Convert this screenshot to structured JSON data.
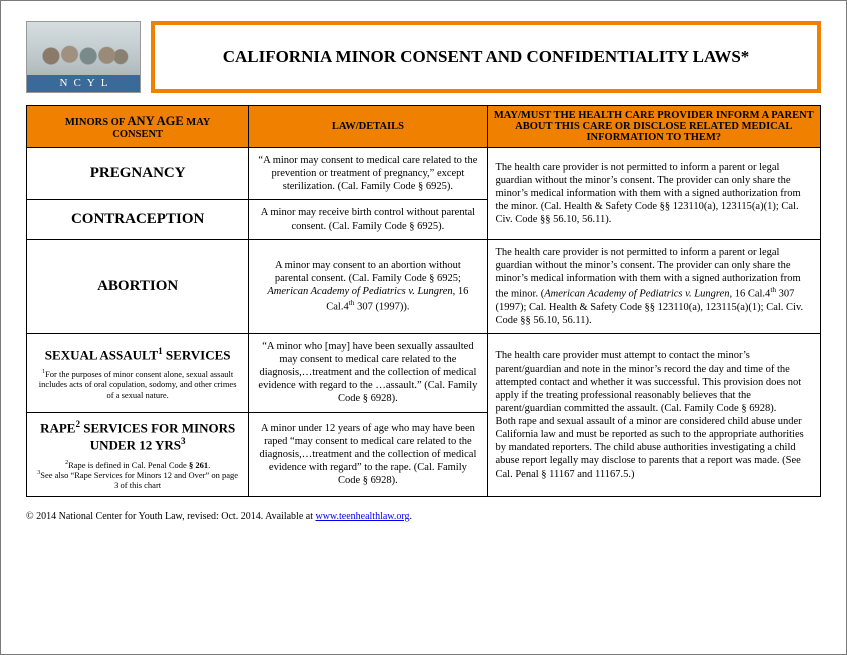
{
  "colors": {
    "accent": "#f08000",
    "logo_band": "#3a6a9a",
    "border": "#000000",
    "background": "#ffffff",
    "link": "#0000ee"
  },
  "logo": {
    "letters": "NCYL"
  },
  "title": "CALIFORNIA MINOR CONSENT AND CONFIDENTIALITY LAWS*",
  "headers": {
    "col1_line1": "MINORS OF",
    "col1_big": "ANY AGE",
    "col1_line1b": "MAY",
    "col1_line2": "CONSENT",
    "col2": "LAW/DETAILS",
    "col3": "MAY/MUST THE HEALTH CARE PROVIDER INFORM A PARENT ABOUT THIS CARE OR DISCLOSE RELATED MEDICAL INFORMATION TO THEM?"
  },
  "rows": {
    "pregnancy": {
      "title": "PREGNANCY",
      "law": "“A minor may consent to medical care related to the prevention or treatment of pregnancy,” except sterilization. (Cal. Family Code § 6925)."
    },
    "contraception": {
      "title": "CONTRACEPTION",
      "law": "A minor may receive birth control without parental consent. (Cal. Family Code § 6925)."
    },
    "preg_contra_disclosure": "The health care provider is not permitted to inform a parent or legal guardian without the minor’s consent.  The provider can only share the minor’s medical information with them with a signed authorization from the minor. (Cal. Health & Safety Code §§ 123110(a), 123115(a)(1); Cal. Civ. Code §§ 56.10, 56.11).",
    "abortion": {
      "title": "ABORTION",
      "law_pre": "A minor may consent to an abortion without parental consent. (Cal. Family Code § 6925; ",
      "law_case": "American Academy of Pediatrics v. Lungren,",
      "law_post": " 16 Cal.4",
      "law_th": "th",
      "law_end": " 307 (1997)).",
      "disc_pre": "The health care provider is not permitted to inform a parent or legal guardian without the minor’s consent.  The provider can only share the minor’s medical information with them with a signed authorization from the minor. (",
      "disc_case": "American Academy of Pediatrics v. Lungren,",
      "disc_post": " 16 Cal.4",
      "disc_th": "th",
      "disc_end": " 307 (1997); Cal. Health & Safety Code §§ 123110(a), 123115(a)(1); Cal. Civ. Code §§ 56.10, 56.11)."
    },
    "sexual_assault": {
      "title_pre": "SEXUAL ASSAULT",
      "title_sup": "1",
      "title_post": " SERVICES",
      "note_sup": "1",
      "note": "For the purposes of minor consent alone, sexual assault includes acts of oral copulation, sodomy, and other crimes of a sexual nature.",
      "law": "“A minor who [may] have been sexually assaulted may consent to medical care related to the diagnosis,…treatment and the collection of medical evidence with regard to the …assault.” (Cal. Family Code § 6928)."
    },
    "rape": {
      "title_pre": "RAPE",
      "title_sup1": "2",
      "title_mid": " SERVICES FOR MINORS UNDER 12 YRS",
      "title_sup2": "3",
      "note2_sup": "2",
      "note2_pre": "Rape is defined in Cal. Penal Code ",
      "note2_bold": "§ 261",
      "note2_post": ".",
      "note3_sup": "3",
      "note3": "See also “Rape Services for Minors 12 and Over” on page 3 of this chart",
      "law": "A minor under 12 years of age who may have been raped “may consent to medical care related to the diagnosis,…treatment and the collection of medical evidence with regard” to the rape. (Cal. Family Code § 6928)."
    },
    "assault_rape_disclosure_p1": "The health care provider must attempt to contact the minor’s parent/guardian and note in the minor’s record the day and time of the attempted contact and whether it was successful. This provision does not apply if the treating professional reasonably believes that the parent/guardian committed the assault. (Cal. Family Code § 6928).",
    "assault_rape_disclosure_p2": "Both rape and sexual assault of a minor are considered child abuse under California law and must be reported as such to the appropriate authorities by mandated reporters. The child abuse authorities investigating a child abuse report legally may disclose to parents that a report was made.  (See Cal. Penal § 11167 and 11167.5.)"
  },
  "footer": {
    "text_pre": "© 2014 National Center for Youth Law, revised: Oct. 2014.  Available at ",
    "link_text": "www.teenhealthlaw.org",
    "text_post": "."
  }
}
